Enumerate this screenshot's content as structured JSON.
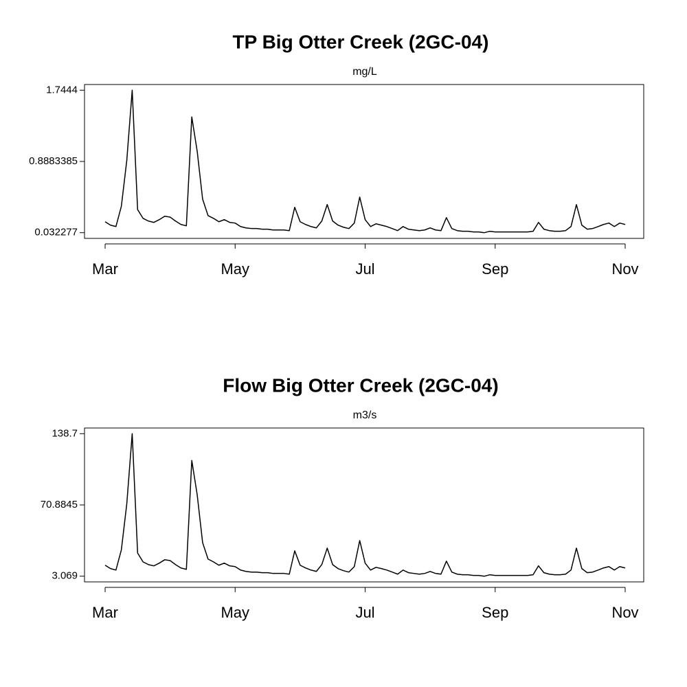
{
  "chart_data": [
    {
      "type": "line",
      "title": "TP Big Otter Creek (2GC-04)",
      "subtitle": "mg/L",
      "categories": [
        "Mar",
        null,
        null,
        null,
        null,
        null,
        null,
        null,
        null,
        null,
        null,
        null,
        null,
        null,
        null,
        null,
        null,
        null,
        null,
        null,
        null,
        null,
        null,
        null,
        "May",
        null,
        null,
        null,
        null,
        null,
        null,
        null,
        null,
        null,
        null,
        null,
        null,
        null,
        null,
        null,
        null,
        null,
        null,
        null,
        null,
        null,
        null,
        null,
        "Jul",
        null,
        null,
        null,
        null,
        null,
        null,
        null,
        null,
        null,
        null,
        null,
        null,
        null,
        null,
        null,
        null,
        null,
        null,
        null,
        null,
        null,
        null,
        null,
        "Sep",
        null,
        null,
        null,
        null,
        null,
        null,
        null,
        null,
        null,
        null,
        null,
        null,
        null,
        null,
        null,
        null,
        null,
        null,
        null,
        null,
        null,
        null,
        null,
        "Nov"
      ],
      "series": [
        {
          "name": null,
          "color": "#000000",
          "values": [
            0.164,
            0.123,
            0.106,
            0.35,
            0.9,
            1.7444,
            0.31,
            0.205,
            0.172,
            0.156,
            0.189,
            0.23,
            0.22,
            0.172,
            0.131,
            0.115,
            1.423,
            1.01,
            0.435,
            0.238,
            0.205,
            0.164,
            0.189,
            0.156,
            0.148,
            0.106,
            0.09,
            0.082,
            0.082,
            0.074,
            0.074,
            0.065,
            0.065,
            0.065,
            0.057,
            0.337,
            0.164,
            0.131,
            0.106,
            0.09,
            0.172,
            0.37,
            0.172,
            0.123,
            0.098,
            0.082,
            0.148,
            0.46,
            0.189,
            0.106,
            0.139,
            0.123,
            0.106,
            0.082,
            0.057,
            0.106,
            0.074,
            0.065,
            0.057,
            0.065,
            0.09,
            0.065,
            0.057,
            0.213,
            0.082,
            0.057,
            0.049,
            0.049,
            0.041,
            0.041,
            0.032277,
            0.049,
            0.041,
            0.041,
            0.041,
            0.041,
            0.041,
            0.041,
            0.041,
            0.049,
            0.156,
            0.074,
            0.057,
            0.049,
            0.049,
            0.057,
            0.106,
            0.37,
            0.123,
            0.074,
            0.082,
            0.106,
            0.131,
            0.148,
            0.106,
            0.148,
            0.131
          ]
        }
      ],
      "ylim": [
        -0.0362,
        1.8129
      ],
      "yticks": [
        0.032277,
        0.8883385,
        1.7444
      ],
      "grid": false
    },
    {
      "type": "line",
      "title": "Flow Big Otter Creek (2GC-04)",
      "subtitle": "m3/s",
      "categories": [
        "Mar",
        null,
        null,
        null,
        null,
        null,
        null,
        null,
        null,
        null,
        null,
        null,
        null,
        null,
        null,
        null,
        null,
        null,
        null,
        null,
        null,
        null,
        null,
        null,
        "May",
        null,
        null,
        null,
        null,
        null,
        null,
        null,
        null,
        null,
        null,
        null,
        null,
        null,
        null,
        null,
        null,
        null,
        null,
        null,
        null,
        null,
        null,
        null,
        "Jul",
        null,
        null,
        null,
        null,
        null,
        null,
        null,
        null,
        null,
        null,
        null,
        null,
        null,
        null,
        null,
        null,
        null,
        null,
        null,
        null,
        null,
        null,
        null,
        "Sep",
        null,
        null,
        null,
        null,
        null,
        null,
        null,
        null,
        null,
        null,
        null,
        null,
        null,
        null,
        null,
        null,
        null,
        null,
        null,
        null,
        null,
        null,
        null,
        "Nov"
      ],
      "series": [
        {
          "name": null,
          "color": "#000000",
          "values": [
            13.5,
            10.3,
            8.9,
            28.2,
            71.8,
            138.7,
            25.1,
            16.7,
            14.1,
            12.9,
            15.5,
            18.7,
            17.9,
            14.1,
            10.9,
            9.6,
            113.2,
            80.5,
            35.0,
            19.4,
            16.7,
            13.5,
            15.5,
            12.9,
            12.2,
            8.9,
            7.6,
            7.0,
            7.0,
            6.4,
            6.4,
            5.7,
            5.7,
            5.7,
            5.0,
            27.2,
            13.5,
            10.9,
            8.9,
            7.6,
            14.1,
            29.8,
            14.1,
            10.3,
            8.3,
            7.0,
            12.2,
            37.0,
            15.5,
            8.9,
            11.5,
            10.3,
            8.9,
            7.0,
            5.0,
            8.9,
            6.4,
            5.7,
            5.0,
            5.7,
            7.6,
            5.7,
            5.0,
            17.4,
            7.0,
            5.0,
            4.4,
            4.4,
            3.8,
            3.8,
            3.069,
            4.4,
            3.8,
            3.8,
            3.8,
            3.8,
            3.8,
            3.8,
            3.8,
            4.4,
            12.9,
            6.4,
            5.0,
            4.4,
            4.4,
            5.0,
            8.9,
            29.8,
            10.3,
            6.4,
            7.0,
            8.9,
            10.9,
            12.2,
            8.9,
            12.2,
            10.9
          ]
        }
      ],
      "ylim": [
        -2.356,
        144.125
      ],
      "yticks": [
        3.069,
        70.8845,
        138.7
      ],
      "grid": false
    }
  ]
}
